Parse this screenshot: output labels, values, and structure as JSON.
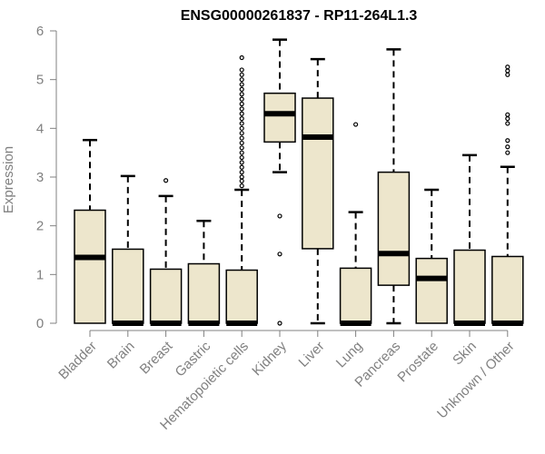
{
  "chart_data": {
    "type": "boxplot",
    "title": "ENSG00000261837 - RP11-264L1.3",
    "xlabel": "",
    "ylabel": "Expression",
    "ylim": [
      0,
      6
    ],
    "yticks": [
      0,
      1,
      2,
      3,
      4,
      5,
      6
    ],
    "box_fill": "#ede6cc",
    "box_stroke": "#000000",
    "axis_color": "#808080",
    "categories": [
      "Bladder",
      "Brain",
      "Breast",
      "Gastric",
      "Hematopoietic cells",
      "Kidney",
      "Liver",
      "Lung",
      "Pancreas",
      "Prostate",
      "Skin",
      "Unknown / Other"
    ],
    "boxes": [
      {
        "category": "Bladder",
        "min": 0,
        "q1": 0,
        "median": 1.35,
        "q3": 2.32,
        "max": 3.76,
        "outliers": []
      },
      {
        "category": "Brain",
        "min": 0,
        "q1": 0,
        "median": 0,
        "q3": 1.52,
        "max": 3.02,
        "outliers": []
      },
      {
        "category": "Breast",
        "min": 0,
        "q1": 0,
        "median": 0,
        "q3": 1.11,
        "max": 2.61,
        "outliers": [
          2.93
        ]
      },
      {
        "category": "Gastric",
        "min": 0,
        "q1": 0,
        "median": 0,
        "q3": 1.22,
        "max": 2.1,
        "outliers": []
      },
      {
        "category": "Hematopoietic cells",
        "min": 0,
        "q1": 0,
        "median": 0,
        "q3": 1.09,
        "max": 2.74,
        "outliers": [
          2.82,
          2.92,
          3.0,
          3.1,
          3.2,
          3.3,
          3.4,
          3.5,
          3.6,
          3.7,
          3.8,
          3.9,
          4.0,
          4.1,
          4.2,
          4.3,
          4.4,
          4.5,
          4.6,
          4.7,
          4.8,
          4.9,
          5.0,
          5.1,
          5.2,
          5.45
        ]
      },
      {
        "category": "Kidney",
        "min": 3.1,
        "q1": 3.72,
        "median": 4.3,
        "q3": 4.72,
        "max": 5.82,
        "outliers": [
          2.2,
          1.42,
          0
        ]
      },
      {
        "category": "Liver",
        "min": 0,
        "q1": 1.53,
        "median": 3.82,
        "q3": 4.62,
        "max": 5.42,
        "outliers": []
      },
      {
        "category": "Lung",
        "min": 0,
        "q1": 0,
        "median": 0,
        "q3": 1.13,
        "max": 2.28,
        "outliers": [
          4.08
        ]
      },
      {
        "category": "Pancreas",
        "min": 0,
        "q1": 0.78,
        "median": 1.43,
        "q3": 3.1,
        "max": 5.62,
        "outliers": []
      },
      {
        "category": "Prostate",
        "min": 0,
        "q1": 0,
        "median": 0.92,
        "q3": 1.33,
        "max": 2.74,
        "outliers": []
      },
      {
        "category": "Skin",
        "min": 0,
        "q1": 0,
        "median": 0,
        "q3": 1.5,
        "max": 3.45,
        "outliers": []
      },
      {
        "category": "Unknown / Other",
        "min": 0,
        "q1": 0,
        "median": 0,
        "q3": 1.37,
        "max": 3.21,
        "outliers": [
          3.5,
          3.62,
          3.75,
          4.1,
          4.2,
          4.28,
          5.1,
          5.18,
          5.26
        ]
      }
    ]
  }
}
